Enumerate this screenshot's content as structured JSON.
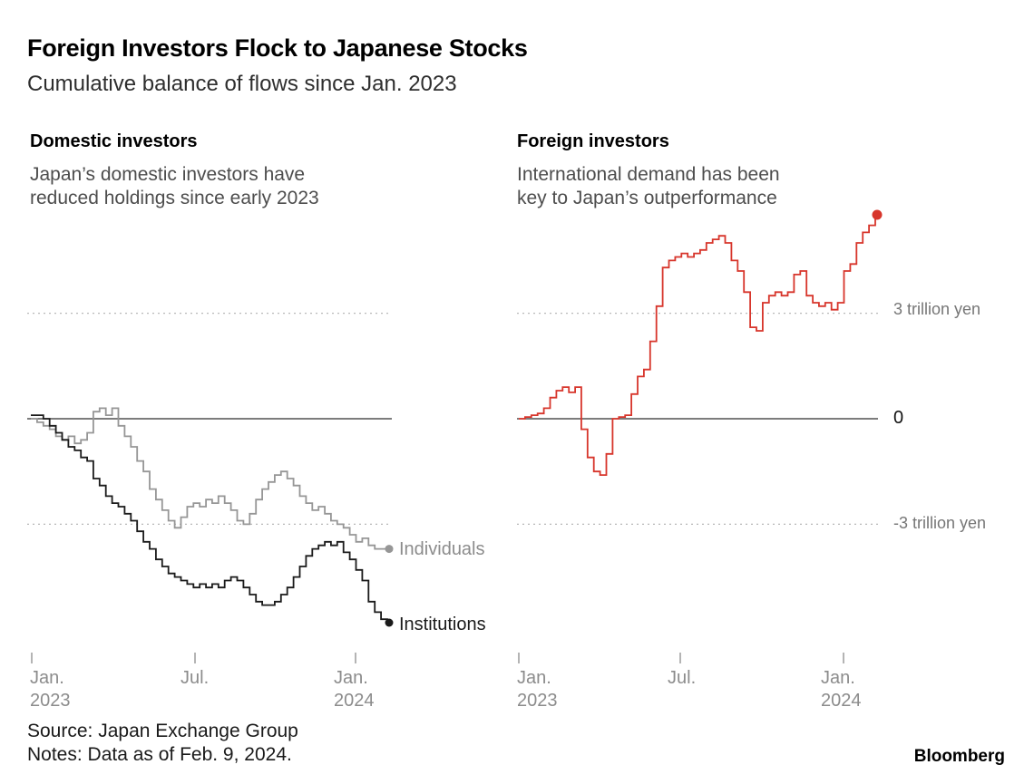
{
  "title": "Foreign Investors Flock to Japanese Stocks",
  "subtitle": "Cumulative balance of flows since Jan. 2023",
  "panels": {
    "left": {
      "heading": "Domestic investors",
      "desc_line1": "Japan’s domestic investors have",
      "desc_line2": "reduced holdings since early 2023"
    },
    "right": {
      "heading": "Foreign investors",
      "desc_line1": "International demand has been",
      "desc_line2": "key to Japan’s outperformance"
    }
  },
  "y_axis": {
    "labels": [
      "3 trillion yen",
      "0",
      "-3 trillion yen"
    ]
  },
  "x_axis": {
    "ticks": [
      {
        "line1": "Jan.",
        "line2": "2023"
      },
      {
        "line1": "Jul.",
        "line2": ""
      },
      {
        "line1": "Jan.",
        "line2": "2024"
      }
    ]
  },
  "annotations": {
    "individuals": "Individuals",
    "institutions": "Institutions"
  },
  "footer": {
    "source": "Source: Japan Exchange Group",
    "notes": "Notes: Data as of Feb. 9, 2024.",
    "brand": "Bloomberg"
  },
  "colors": {
    "red": "#d7352b",
    "gray_line": "#969696",
    "black_line": "#1a1a1a",
    "grid": "#b8b8b8",
    "zero_line": "#2e2e2e",
    "tick": "#9a9a9a"
  },
  "chart_data": [
    {
      "type": "line",
      "line_style": "step",
      "title": "Domestic investors",
      "subtitle": "Japan’s domestic investors have reduced holdings since early 2023",
      "units": "trillion yen",
      "x_start": "Jan. 2023",
      "x_end": "Feb. 9, 2024",
      "frequency": "weekly",
      "x_tick_labels": [
        "Jan. 2023",
        "Jul.",
        "Jan. 2024"
      ],
      "ylim": [
        -6.5,
        6.5
      ],
      "gridlines_y": [
        3,
        0,
        -3
      ],
      "legend_position": "end-of-line",
      "series": [
        {
          "name": "Individuals",
          "color": "#969696",
          "end_label": "Individuals",
          "values": [
            0.0,
            -0.1,
            -0.2,
            -0.3,
            -0.5,
            -0.6,
            -0.5,
            -0.7,
            -0.6,
            -0.4,
            0.2,
            0.3,
            0.1,
            0.3,
            -0.2,
            -0.5,
            -0.8,
            -1.2,
            -1.5,
            -2.0,
            -2.3,
            -2.6,
            -2.9,
            -3.1,
            -2.8,
            -2.5,
            -2.4,
            -2.5,
            -2.3,
            -2.4,
            -2.2,
            -2.4,
            -2.6,
            -2.9,
            -3.0,
            -2.7,
            -2.3,
            -2.0,
            -1.8,
            -1.6,
            -1.5,
            -1.7,
            -1.9,
            -2.2,
            -2.4,
            -2.6,
            -2.5,
            -2.7,
            -2.9,
            -3.0,
            -3.1,
            -3.3,
            -3.5,
            -3.4,
            -3.6,
            -3.7,
            -3.7,
            -3.7
          ]
        },
        {
          "name": "Institutions",
          "color": "#1a1a1a",
          "end_label": "Institutions",
          "values": [
            0.1,
            0.1,
            0.0,
            -0.2,
            -0.4,
            -0.6,
            -0.8,
            -0.9,
            -1.1,
            -1.2,
            -1.7,
            -1.9,
            -2.2,
            -2.4,
            -2.5,
            -2.7,
            -2.9,
            -3.2,
            -3.5,
            -3.7,
            -4.0,
            -4.2,
            -4.4,
            -4.5,
            -4.6,
            -4.7,
            -4.8,
            -4.7,
            -4.8,
            -4.7,
            -4.8,
            -4.6,
            -4.5,
            -4.6,
            -4.8,
            -5.0,
            -5.2,
            -5.3,
            -5.3,
            -5.2,
            -5.0,
            -4.8,
            -4.5,
            -4.2,
            -3.9,
            -3.7,
            -3.6,
            -3.5,
            -3.6,
            -3.5,
            -3.8,
            -4.0,
            -4.3,
            -4.6,
            -5.2,
            -5.5,
            -5.7,
            -5.8
          ]
        }
      ]
    },
    {
      "type": "line",
      "line_style": "step",
      "title": "Foreign investors",
      "subtitle": "International demand has been key to Japan’s outperformance",
      "units": "trillion yen",
      "x_start": "Jan. 2023",
      "x_end": "Feb. 9, 2024",
      "frequency": "weekly",
      "x_tick_labels": [
        "Jan. 2023",
        "Jul.",
        "Jan. 2024"
      ],
      "ylim": [
        -6.5,
        6.5
      ],
      "gridlines_y": [
        3,
        0,
        -3
      ],
      "legend_position": "none",
      "series": [
        {
          "name": "Foreign investors",
          "color": "#d7352b",
          "end_label": "",
          "values": [
            0.0,
            0.05,
            0.1,
            0.15,
            0.3,
            0.6,
            0.8,
            0.9,
            0.75,
            0.9,
            -0.3,
            -1.1,
            -1.5,
            -1.6,
            -1.0,
            0.0,
            0.05,
            0.1,
            0.7,
            1.2,
            1.4,
            2.2,
            3.2,
            4.3,
            4.5,
            4.6,
            4.7,
            4.6,
            4.7,
            4.8,
            5.0,
            5.1,
            5.2,
            5.0,
            4.5,
            4.2,
            3.6,
            2.6,
            2.5,
            3.3,
            3.5,
            3.6,
            3.5,
            3.6,
            4.1,
            4.2,
            3.5,
            3.3,
            3.2,
            3.3,
            3.1,
            3.3,
            4.2,
            4.4,
            5.0,
            5.3,
            5.5,
            5.8
          ]
        }
      ]
    }
  ]
}
